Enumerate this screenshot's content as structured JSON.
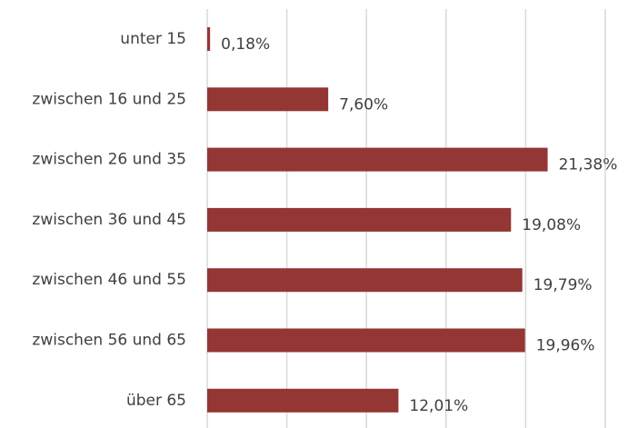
{
  "chart_data": {
    "type": "barh",
    "categories": [
      "unter 15",
      "zwischen 16 und 25",
      "zwischen 26 und 35",
      "zwischen 36 und 45",
      "zwischen 46 und 55",
      "zwischen 56 und 65",
      "über 65"
    ],
    "values": [
      0.18,
      7.6,
      21.38,
      19.08,
      19.79,
      19.96,
      12.01
    ],
    "value_labels": [
      "0,18%",
      "7,60%",
      "21,38%",
      "19,08%",
      "19,79%",
      "19,96%",
      "12,01%"
    ],
    "color": "#943634",
    "xlim": [
      0,
      25
    ],
    "xticks": [
      0,
      5,
      10,
      15,
      20,
      25
    ],
    "grid": true
  }
}
